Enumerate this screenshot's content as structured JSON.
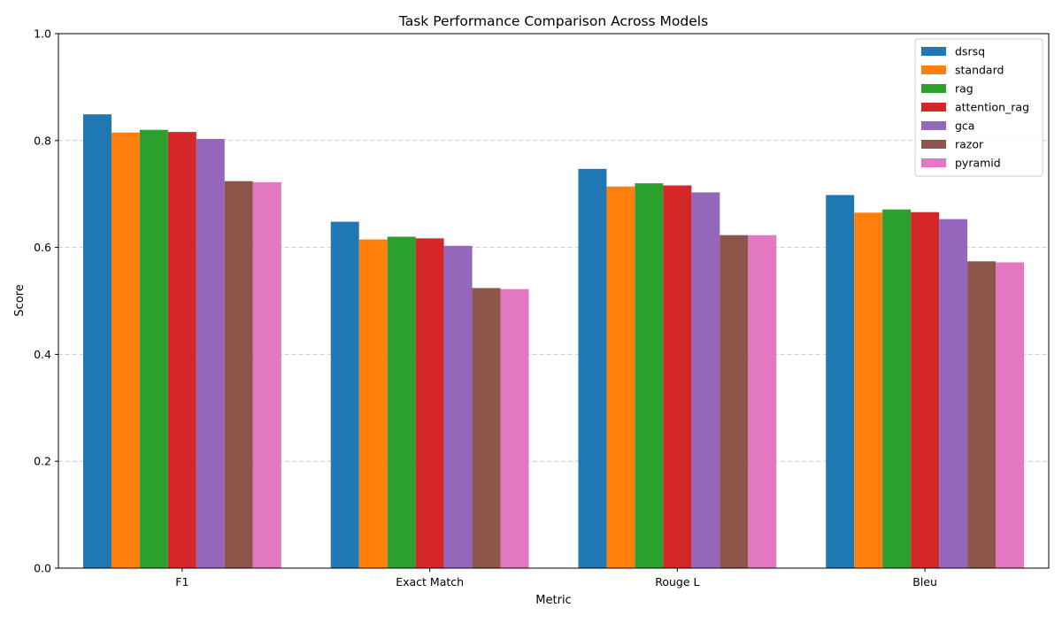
{
  "chart_data": {
    "type": "bar",
    "title": "Task Performance Comparison Across Models",
    "xlabel": "Metric",
    "ylabel": "Score",
    "categories": [
      "F1",
      "Exact Match",
      "Rouge L",
      "Bleu"
    ],
    "ylim": [
      0,
      1.0
    ],
    "yticks": [
      0.0,
      0.2,
      0.4,
      0.6,
      0.8,
      1.0
    ],
    "ytick_labels": [
      "0.0",
      "0.2",
      "0.4",
      "0.6",
      "0.8",
      "1.0"
    ],
    "grid": "horizontal dashed",
    "legend_position": "top-right",
    "series": [
      {
        "name": "dsrsq",
        "color": "#1f77b4",
        "values": [
          0.849,
          0.648,
          0.747,
          0.698
        ]
      },
      {
        "name": "standard",
        "color": "#ff7f0e",
        "values": [
          0.815,
          0.615,
          0.714,
          0.665
        ]
      },
      {
        "name": "rag",
        "color": "#2ca02c",
        "values": [
          0.82,
          0.62,
          0.72,
          0.671
        ]
      },
      {
        "name": "attention_rag",
        "color": "#d62728",
        "values": [
          0.816,
          0.617,
          0.716,
          0.666
        ]
      },
      {
        "name": "gca",
        "color": "#9467bd",
        "values": [
          0.803,
          0.603,
          0.703,
          0.653
        ]
      },
      {
        "name": "razor",
        "color": "#8c564b",
        "values": [
          0.724,
          0.524,
          0.623,
          0.574
        ]
      },
      {
        "name": "pyramid",
        "color": "#e377c2",
        "values": [
          0.722,
          0.522,
          0.623,
          0.572
        ]
      }
    ]
  }
}
